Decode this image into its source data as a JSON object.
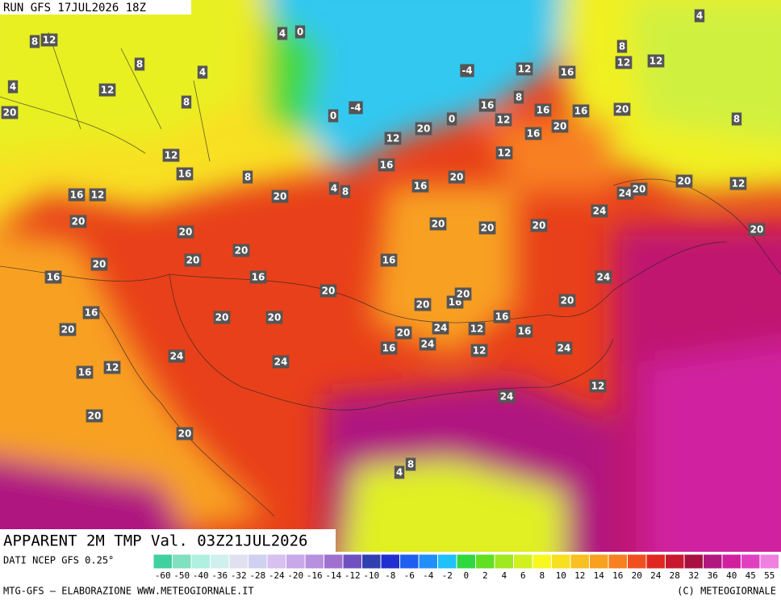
{
  "header": {
    "run": "RUN GFS 17JUL2026 18Z",
    "title": "APPARENT 2M TMP Val. 03Z21JUL2026"
  },
  "footer": {
    "source": "DATI NCEP GFS 0.25°",
    "credit": "MTG-GFS — ELABORAZIONE WWW.METEOGIORNALE.IT",
    "copyright": "(C) METEOGIORNALE"
  },
  "legend": {
    "labels": [
      "-60",
      "-50",
      "-40",
      "-36",
      "-32",
      "-28",
      "-24",
      "-20",
      "-16",
      "-14",
      "-12",
      "-10",
      "-8",
      "-6",
      "-4",
      "-2",
      "0",
      "2",
      "4",
      "6",
      "8",
      "10",
      "12",
      "14",
      "16",
      "20",
      "24",
      "28",
      "32",
      "36",
      "40",
      "45",
      "55"
    ],
    "colors": [
      "#40d0a0",
      "#80e0c0",
      "#b0f0e0",
      "#d0f0f0",
      "#e0e0f0",
      "#d0d0f0",
      "#d8c0f0",
      "#c8a8e8",
      "#b890e0",
      "#a070d0",
      "#7050c0",
      "#3040b0",
      "#2030d0",
      "#2060f0",
      "#2090f8",
      "#20c0f8",
      "#30d840",
      "#60e020",
      "#a0e820",
      "#d0f020",
      "#f8f820",
      "#f8e020",
      "#f8c020",
      "#f8a020",
      "#f88020",
      "#f05020",
      "#e02820",
      "#c81830",
      "#a81040",
      "#b01880",
      "#d020a0",
      "#e040c0",
      "#f080e0"
    ]
  },
  "map_labels": [
    "4",
    "0",
    "8",
    "12",
    "8",
    "4",
    "4",
    "12",
    "8",
    "20",
    "12",
    "16",
    "8",
    "16",
    "12",
    "20",
    "20",
    "4",
    "8",
    "16",
    "20",
    "20",
    "20",
    "16",
    "20",
    "16",
    "20",
    "24",
    "20",
    "20",
    "24",
    "20",
    "16",
    "20",
    "20",
    "12",
    "16",
    "20",
    "24",
    "20",
    "16",
    "20",
    "24",
    "20",
    "24",
    "8",
    "12",
    "16",
    "12",
    "4",
    "8",
    "-4",
    "-4",
    "0",
    "12",
    "16",
    "20",
    "16",
    "12",
    "16",
    "20",
    "12",
    "8",
    "16",
    "16",
    "12",
    "8",
    "20",
    "24",
    "20",
    "24",
    "20",
    "20",
    "16",
    "24",
    "12",
    "12",
    "4",
    "8",
    "20",
    "20",
    "12",
    "0",
    "16",
    "16",
    "20",
    "24",
    "12",
    "16",
    "20"
  ]
}
